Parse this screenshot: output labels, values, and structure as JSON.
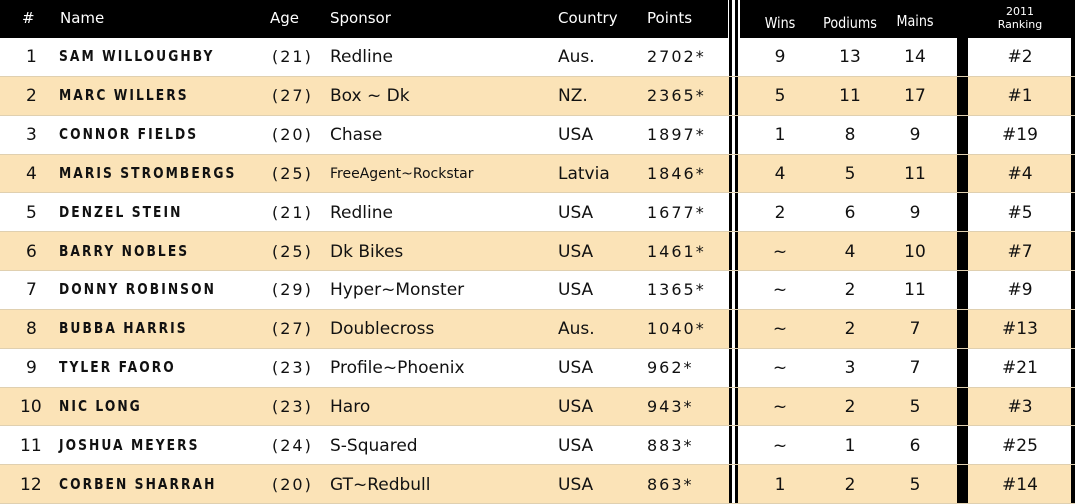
{
  "table": {
    "headers": [
      "#",
      "Name",
      "Age",
      "Sponsor",
      "Country",
      "Points"
    ],
    "stats_headers": [
      "Wins",
      "Podiums",
      "Mains"
    ],
    "ranking_header": {
      "year": "2011",
      "label": "Ranking"
    },
    "rows": [
      [
        "1",
        "SAM WILLOUGHBY",
        "(21)",
        "Redline",
        "Aus.",
        "2702*",
        "9",
        "13",
        "14",
        "#2"
      ],
      [
        "2",
        "MARC WILLERS",
        "(27)",
        "Box ~ Dk",
        "NZ.",
        "2365*",
        "5",
        "11",
        "17",
        "#1"
      ],
      [
        "3",
        "CONNOR FIELDS",
        "(20)",
        "Chase",
        "USA",
        "1897*",
        "1",
        "8",
        "9",
        "#19"
      ],
      [
        "4",
        "MARIS STROMBERGS",
        "(25)",
        "FreeAgent~Rockstar",
        "Latvia",
        "1846*",
        "4",
        "5",
        "11",
        "#4"
      ],
      [
        "5",
        "DENZEL STEIN",
        "(21)",
        "Redline",
        "USA",
        "1677*",
        "2",
        "6",
        "9",
        "#5"
      ],
      [
        "6",
        "BARRY NOBLES",
        "(25)",
        "Dk Bikes",
        "USA",
        "1461*",
        "~",
        "4",
        "10",
        "#7"
      ],
      [
        "7",
        "DONNY ROBINSON",
        "(29)",
        "Hyper~Monster",
        "USA",
        "1365*",
        "~",
        "2",
        "11",
        "#9"
      ],
      [
        "8",
        "BUBBA HARRIS",
        "(27)",
        "Doublecross",
        "Aus.",
        "1040*",
        "~",
        "2",
        "7",
        "#13"
      ],
      [
        "9",
        "TYLER FAORO",
        "(23)",
        "Profile~Phoenix",
        "USA",
        "962*",
        "~",
        "3",
        "7",
        "#21"
      ],
      [
        "10",
        "NIC LONG",
        "(23)",
        "Haro",
        "USA",
        "943*",
        "~",
        "2",
        "5",
        "#3"
      ],
      [
        "11",
        "JOSHUA MEYERS",
        "(24)",
        "S-Squared",
        "USA",
        "883*",
        "~",
        "1",
        "6",
        "#25"
      ],
      [
        "12",
        "CORBEN SHARRAH",
        "(20)",
        "GT~Redbull",
        "USA",
        "863*",
        "1",
        "2",
        "5",
        "#14"
      ]
    ]
  }
}
